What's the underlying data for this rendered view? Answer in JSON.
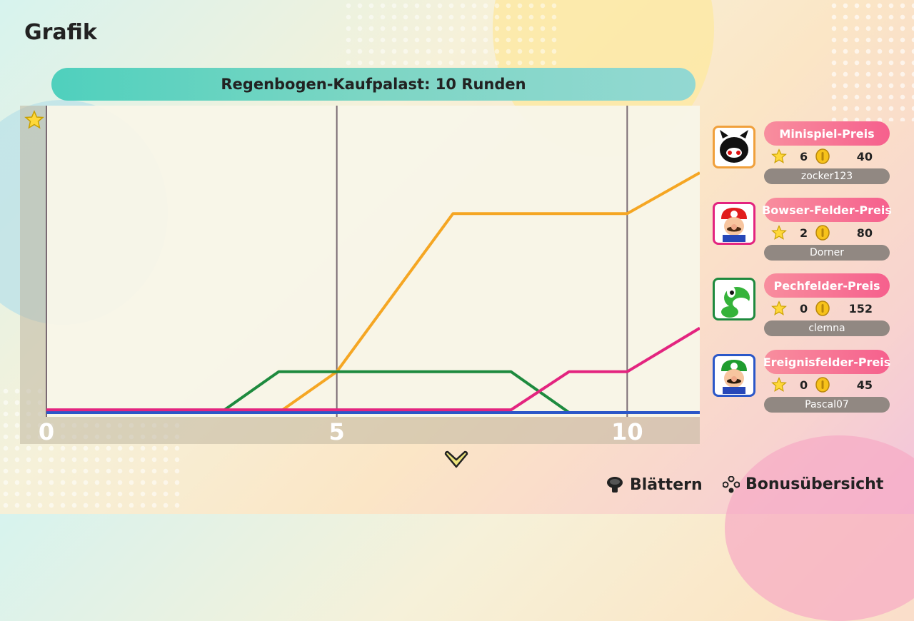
{
  "page_title": "Grafik",
  "chart_title": "Regenbogen-Kaufpalast: 10 Runden",
  "chart_data": {
    "type": "line",
    "xlim": [
      0,
      11.25
    ],
    "ylim": [
      0,
      11
    ],
    "x_ticks": [
      "0",
      "5",
      "10"
    ],
    "grid": true,
    "series": [
      {
        "color": "#f5a623",
        "x": [
          0,
          4,
          5,
          7,
          10,
          11.25
        ],
        "y": [
          0,
          0,
          1.5,
          7.3,
          7.3,
          8.8
        ]
      },
      {
        "color": "#1e8a3e",
        "x": [
          0,
          3,
          4,
          8,
          9,
          11.25
        ],
        "y": [
          0,
          0,
          1.5,
          1.5,
          0,
          0
        ]
      },
      {
        "color": "#2b57c8",
        "x": [
          0,
          11.25
        ],
        "y": [
          0,
          0
        ]
      },
      {
        "color": "#e3247f",
        "x": [
          0,
          8,
          9,
          10,
          11.25
        ],
        "y": [
          0.1,
          0.1,
          1.5,
          1.5,
          3.1
        ]
      }
    ]
  },
  "players": [
    {
      "bonus": "Minispiel-Preis",
      "stars": "6",
      "coins": "40",
      "name": "zocker123",
      "color": "#f0a03c",
      "avatar": "ninji-icon"
    },
    {
      "bonus": "Bowser-Felder-Preis",
      "stars": "2",
      "coins": "80",
      "name": "Dorner",
      "color": "#e3247f",
      "avatar": "mario-icon"
    },
    {
      "bonus": "Pechfelder-Preis",
      "stars": "0",
      "coins": "152",
      "name": "clemna",
      "color": "#1e8a3e",
      "avatar": "yoshi-icon"
    },
    {
      "bonus": "Ereignisfelder-Preis",
      "stars": "0",
      "coins": "45",
      "name": "Pascal07",
      "color": "#2b57c8",
      "avatar": "luigi-icon"
    }
  ],
  "controls": {
    "scroll_label": "Blättern",
    "overview_label": "Bonusübersicht"
  }
}
